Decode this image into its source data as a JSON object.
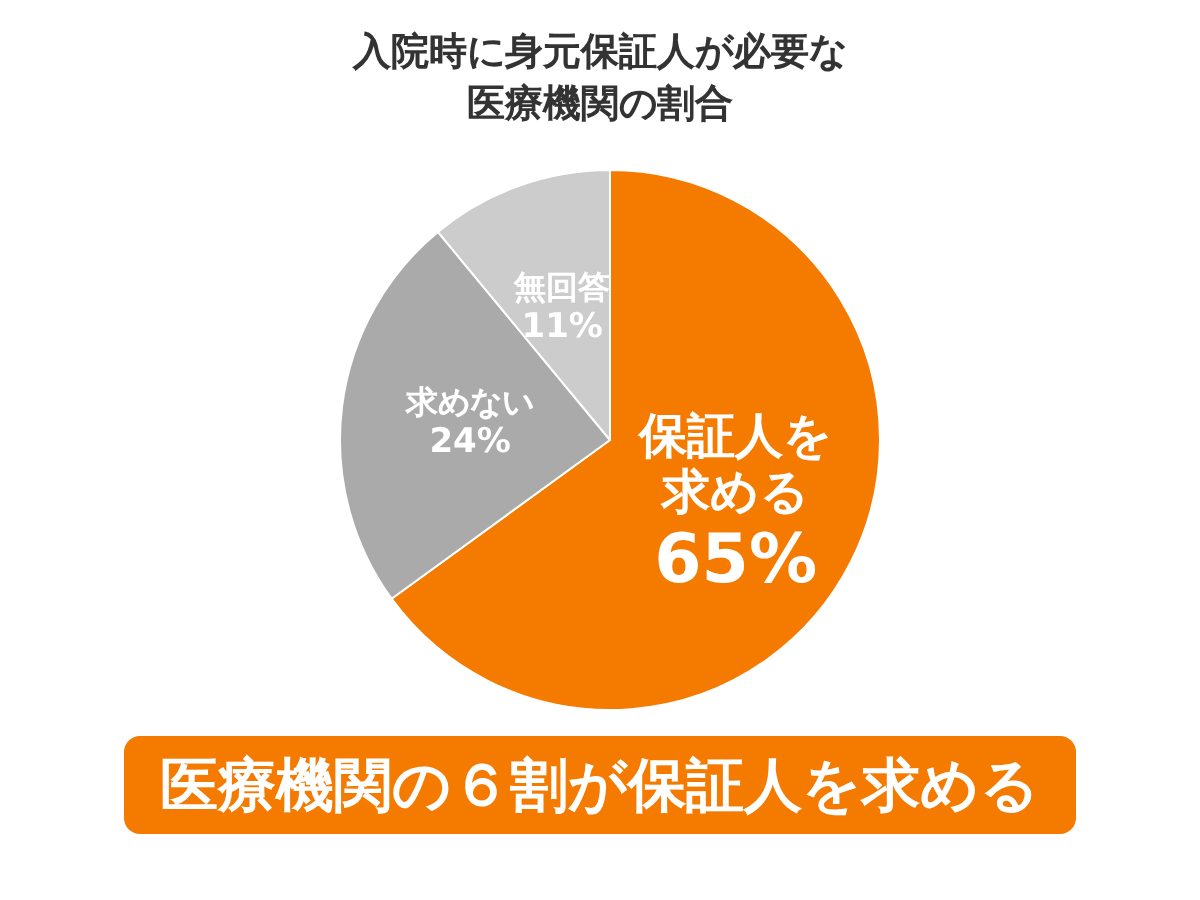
{
  "chart_data": {
    "type": "pie",
    "title": "入院時に身元保証人が必要な医療機関の割合",
    "categories": [
      "保証人を求める",
      "求めない",
      "無回答"
    ],
    "values": [
      65,
      24,
      11
    ],
    "colors": [
      "#f47a00",
      "#aaaaaa",
      "#cccccc"
    ],
    "value_labels": [
      "65%",
      "24%",
      "11%"
    ],
    "annotations": [
      "医療機関の６割が保証人を求める"
    ],
    "legend": false
  }
}
